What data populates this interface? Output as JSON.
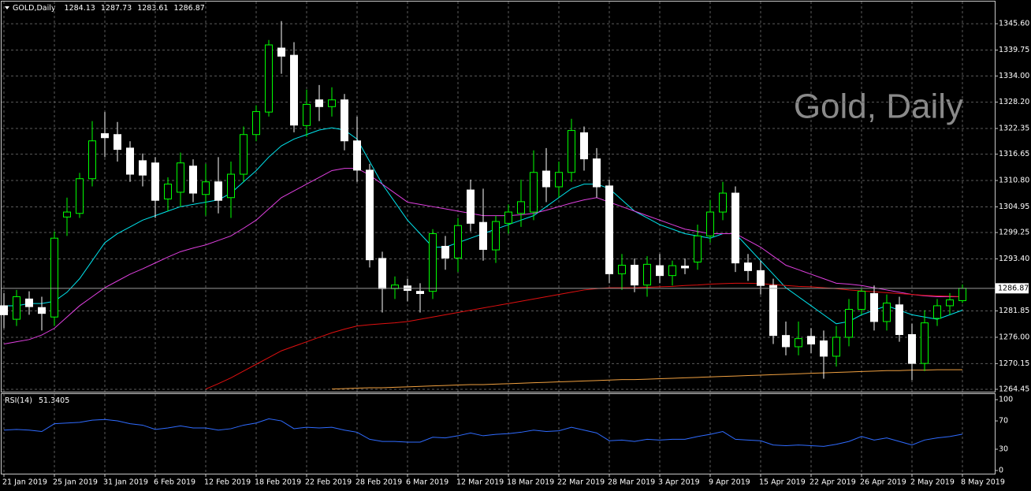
{
  "chart_data": [
    {
      "type": "candlestick",
      "title": "GOLD,Daily",
      "watermark": "Gold, Daily",
      "categories": [
        "21 Jan 2019",
        null,
        null,
        null,
        "25 Jan 2019",
        null,
        null,
        null,
        "31 Jan 2019",
        null,
        null,
        null,
        "6 Feb 2019",
        null,
        null,
        null,
        "12 Feb 2019",
        null,
        null,
        null,
        "18 Feb 2019",
        null,
        null,
        null,
        "22 Feb 2019",
        null,
        null,
        null,
        "28 Feb 2019",
        null,
        null,
        null,
        "6 Mar 2019",
        null,
        null,
        null,
        "12 Mar 2019",
        null,
        null,
        null,
        "18 Mar 2019",
        null,
        null,
        null,
        "22 Mar 2019",
        null,
        null,
        null,
        "28 Mar 2019",
        null,
        null,
        null,
        "3 Apr 2019",
        null,
        null,
        null,
        "9 Apr 2019",
        null,
        null,
        null,
        "15 Apr 2019",
        null,
        null,
        null,
        "22 Apr 2019",
        null,
        null,
        null,
        "26 Apr 2019",
        null,
        null,
        null,
        "2 May 2019",
        null,
        null,
        null,
        "8 May 2019"
      ],
      "open": [
        1283,
        1280,
        1284.5,
        1282.6,
        1280.5,
        1302.7,
        1303.5,
        1311.2,
        1321.2,
        1321,
        1318,
        1315.2,
        1314.7,
        1306.7,
        1308.2,
        1314,
        1307.7,
        1310.5,
        1307,
        1312.2,
        1321,
        1326,
        1340.2,
        1338.6,
        1323,
        1328.7,
        1327.2,
        1328.7,
        1319.6,
        1313.1,
        1293.5,
        1286.8,
        1287.4,
        1286.2,
        1286.2,
        1296.2,
        1293.6,
        1308.7,
        1301.5,
        1295.4,
        1301.3,
        1303.5,
        1303.8,
        1312.9,
        1309.4,
        1312.6,
        1321.4,
        1315.6,
        1309.6,
        1290.1,
        1292,
        1287.6,
        1291.9,
        1289.7,
        1291.8,
        1292.7,
        1298.5,
        1303.8,
        1308,
        1292.5,
        1290.8,
        1287.5,
        1276.4,
        1273.9,
        1276.2,
        1275.2,
        1271.8,
        1276,
        1282.2,
        1285.7,
        1279.5,
        1283.2,
        1276.6,
        1270.2,
        1280.2,
        1283,
        1284.13
      ],
      "high": [
        1285.8,
        1286.5,
        1286.2,
        1285,
        1299.5,
        1307,
        1312.5,
        1324,
        1326,
        1323.8,
        1319.5,
        1316.8,
        1316,
        1311.5,
        1317,
        1315.5,
        1314.5,
        1316,
        1315,
        1322.8,
        1327.5,
        1342,
        1346.2,
        1341.5,
        1331,
        1332,
        1331.5,
        1330,
        1325,
        1314.5,
        1295,
        1289.5,
        1289,
        1288,
        1300,
        1298.5,
        1302.5,
        1311,
        1309,
        1303,
        1305.5,
        1311,
        1317.5,
        1318,
        1315,
        1324.5,
        1322.8,
        1318,
        1311,
        1294.5,
        1293.5,
        1294,
        1294.5,
        1293,
        1293.5,
        1301,
        1306.5,
        1310.5,
        1309.5,
        1294.5,
        1293,
        1289,
        1279.5,
        1279.5,
        1278,
        1277.5,
        1278.5,
        1284.5,
        1286.8,
        1287.5,
        1285.5,
        1285,
        1279,
        1282,
        1284.5,
        1285.8,
        1287.73
      ],
      "low": [
        1278,
        1278.5,
        1281,
        1277.5,
        1278.5,
        1298.5,
        1302.5,
        1309.5,
        1316,
        1315,
        1310.5,
        1309.5,
        1302.5,
        1304,
        1305,
        1306,
        1303,
        1303.5,
        1302.5,
        1310.5,
        1319.5,
        1325,
        1334.5,
        1321.5,
        1320.5,
        1324,
        1325,
        1317.5,
        1310.5,
        1291.5,
        1281.5,
        1284.5,
        1284,
        1281.5,
        1284.5,
        1291,
        1290.5,
        1299.5,
        1293,
        1292.5,
        1299,
        1300.5,
        1302,
        1306,
        1307,
        1310.5,
        1313,
        1307,
        1288,
        1286.5,
        1286,
        1285,
        1288,
        1287.5,
        1290,
        1291,
        1297,
        1302,
        1290.5,
        1288.5,
        1285.5,
        1274.5,
        1272,
        1272,
        1272.5,
        1266.8,
        1269.5,
        1274,
        1281,
        1277.5,
        1277.5,
        1275,
        1266.5,
        1268.5,
        1278.5,
        1281,
        1283.61
      ],
      "close": [
        1281,
        1285,
        1282.8,
        1281.3,
        1298,
        1303.8,
        1311.2,
        1319.6,
        1320.3,
        1317.7,
        1312.2,
        1312,
        1306.4,
        1310,
        1314.7,
        1308,
        1310.5,
        1306.4,
        1312.2,
        1321,
        1326.1,
        1340.9,
        1338.4,
        1323.1,
        1327.7,
        1327.2,
        1328.7,
        1319.6,
        1313.1,
        1293.2,
        1286.8,
        1287.6,
        1286.4,
        1285.7,
        1299,
        1293.6,
        1300.8,
        1301.3,
        1295.5,
        1301.7,
        1303.8,
        1306.1,
        1312.6,
        1309.4,
        1312.6,
        1321.9,
        1315.6,
        1309.4,
        1290.1,
        1292,
        1287.6,
        1292.2,
        1289.7,
        1291.9,
        1291.4,
        1298.5,
        1303.8,
        1308,
        1292.5,
        1290.8,
        1287.5,
        1276.4,
        1273.9,
        1275.7,
        1274.5,
        1271.8,
        1276,
        1282.2,
        1286.2,
        1279.5,
        1283.6,
        1276.6,
        1270.2,
        1279.2,
        1283,
        1284.3,
        1286.87
      ],
      "up_color": "#00ff00",
      "down_color": "#ffffff",
      "overlays": [
        {
          "color": "#00e5ee",
          "values": [
            1283,
            1283,
            1283.5,
            1283.5,
            1284,
            1286,
            1289,
            1293,
            1297,
            1299,
            1300.5,
            1302,
            1303,
            1304,
            1305,
            1305.5,
            1306,
            1306.5,
            1308,
            1310.5,
            1313,
            1316,
            1318.5,
            1320,
            1321,
            1322,
            1322.5,
            1322,
            1320,
            1315,
            1310,
            1306,
            1302,
            1299,
            1296,
            1296,
            1297,
            1298,
            1299,
            1300,
            1301,
            1302,
            1303,
            1305,
            1307,
            1309,
            1310,
            1310,
            1309,
            1306.5,
            1304,
            1302.5,
            1301,
            1300,
            1299,
            1298.5,
            1298,
            1299,
            1299,
            1296,
            1293,
            1290,
            1287,
            1285,
            1283,
            1281,
            1279,
            1279.5,
            1281,
            1282,
            1283,
            1282,
            1281,
            1280.5,
            1280,
            1281,
            1282
          ]
        },
        {
          "color": "#e040e0",
          "values": [
            1274.5,
            1275,
            1275.5,
            1276.5,
            1278,
            1280.5,
            1283,
            1285,
            1287,
            1288.5,
            1290,
            1291.2,
            1292.5,
            1293.8,
            1295,
            1295.8,
            1296.5,
            1297.5,
            1298.5,
            1300.2,
            1302,
            1304.5,
            1307,
            1308.5,
            1310,
            1311.5,
            1313,
            1313.5,
            1313.5,
            1312,
            1310,
            1308,
            1306,
            1305.5,
            1305,
            1304.5,
            1304,
            1303.5,
            1303,
            1303,
            1303,
            1303.2,
            1303.5,
            1304.2,
            1305,
            1305.8,
            1306.5,
            1307,
            1306,
            1305,
            1304,
            1303,
            1302,
            1301,
            1300,
            1299.5,
            1299,
            1299,
            1299,
            1297.5,
            1296,
            1294,
            1292,
            1291,
            1290,
            1289,
            1288,
            1287.8,
            1287.5,
            1287,
            1286.5,
            1286,
            1285.5,
            1285.2,
            1285,
            1285,
            1285
          ]
        },
        {
          "color": "#e01010",
          "values": [
            null,
            null,
            null,
            null,
            null,
            null,
            null,
            null,
            null,
            null,
            null,
            null,
            null,
            null,
            null,
            null,
            1264.5,
            1265.7,
            1267,
            1268.5,
            1270,
            1271.5,
            1273,
            1274,
            1275,
            1276,
            1277,
            1277.8,
            1278.5,
            1278.8,
            1279,
            1279.2,
            1279.5,
            1280,
            1280.5,
            1281,
            1281.5,
            1282,
            1282.5,
            1283,
            1283.5,
            1284,
            1284.5,
            1285,
            1285.5,
            1286,
            1286.5,
            1286.8,
            1287,
            1287,
            1287,
            1287.1,
            1287.2,
            1287.3,
            1287.5,
            1287.6,
            1287.8,
            1287.9,
            1288,
            1288,
            1287.9,
            1287.7,
            1287.5,
            1287.3,
            1287.2,
            1287,
            1286.8,
            1286.5,
            1286.3,
            1286.1,
            1285.9,
            1285.7,
            1285.5,
            1285.3,
            1285.2,
            1285.1,
            1285
          ]
        },
        {
          "color": "#f0a040",
          "values": [
            null,
            null,
            null,
            null,
            null,
            null,
            null,
            null,
            null,
            null,
            null,
            null,
            null,
            null,
            null,
            null,
            null,
            null,
            null,
            null,
            null,
            null,
            null,
            null,
            null,
            null,
            1264.5,
            1264.6,
            1264.7,
            1264.8,
            1264.8,
            1264.9,
            1265,
            1265.1,
            1265.2,
            1265.3,
            1265.4,
            1265.5,
            1265.5,
            1265.6,
            1265.7,
            1265.8,
            1265.9,
            1266,
            1266.1,
            1266.2,
            1266.3,
            1266.4,
            1266.5,
            1266.6,
            1266.6,
            1266.7,
            1266.8,
            1266.9,
            1267,
            1267.1,
            1267.2,
            1267.3,
            1267.4,
            1267.5,
            1267.6,
            1267.7,
            1267.8,
            1267.9,
            1268,
            1268.1,
            1268.2,
            1268.3,
            1268.4,
            1268.5,
            1268.6,
            1268.6,
            1268.7,
            1268.7,
            1268.8,
            1268.8,
            1268.8
          ]
        }
      ],
      "ylim": [
        1263.92,
        1350.52
      ],
      "yticks": [
        {
          "value": 1345.6,
          "label": "1345.60"
        },
        {
          "value": 1339.75,
          "label": "1339.75"
        },
        {
          "value": 1334,
          "label": "1334.00"
        },
        {
          "value": 1328.2,
          "label": "1328.20"
        },
        {
          "value": 1322.35,
          "label": "1322.35"
        },
        {
          "value": 1316.65,
          "label": "1316.65"
        },
        {
          "value": 1310.8,
          "label": "1310.80"
        },
        {
          "value": 1304.95,
          "label": "1304.95"
        },
        {
          "value": 1299.25,
          "label": "1299.25"
        },
        {
          "value": 1293.4,
          "label": "1293.40"
        },
        {
          "value": 1281.85,
          "label": "1281.85"
        },
        {
          "value": 1276,
          "label": "1276.00"
        },
        {
          "value": 1270.15,
          "label": "1270.15"
        },
        {
          "value": 1264.45,
          "label": "1264.45"
        }
      ],
      "grid": true
    },
    {
      "type": "line",
      "title": "RSI(14)",
      "color": "#2f6bff",
      "values": [
        57,
        58,
        57,
        55,
        66,
        67,
        68,
        71,
        72,
        70,
        66,
        64,
        58,
        60,
        63,
        60,
        60,
        57,
        59,
        64,
        67,
        73,
        70,
        59,
        61,
        60,
        61,
        57,
        54,
        44,
        41,
        41,
        40,
        40,
        47,
        46,
        49,
        53,
        49,
        51,
        52,
        54,
        57,
        55,
        56,
        61,
        57,
        53,
        42,
        43,
        41,
        44,
        43,
        44,
        44,
        48,
        51,
        55,
        44,
        43,
        42,
        36,
        35,
        36,
        35,
        34,
        37,
        41,
        48,
        43,
        46,
        41,
        36,
        43,
        46,
        48,
        51.3405
      ],
      "ylim": [
        -4.5,
        107.9
      ],
      "yticks": [
        100,
        70,
        30,
        0
      ],
      "grid": false
    }
  ]
}
